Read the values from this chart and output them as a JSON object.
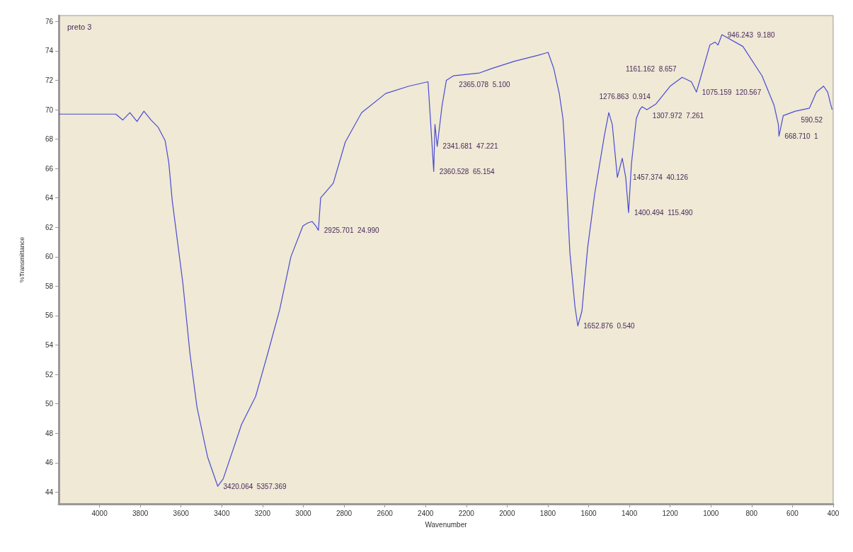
{
  "chart_data": {
    "type": "line",
    "xlabel": "Wavenumber",
    "ylabel": "%Transmittance",
    "x": [
      4200,
      3920,
      3886,
      3851,
      3816,
      3782,
      3747,
      3712,
      3678,
      3660,
      3643,
      3591,
      3556,
      3522,
      3470,
      3420,
      3393,
      3303,
      3234,
      3175,
      3116,
      3061,
      3002,
      2978,
      2957,
      2939,
      2926,
      2915,
      2853,
      2794,
      2714,
      2596,
      2482,
      2388,
      2360,
      2354,
      2343,
      2319,
      2298,
      2264,
      2135,
      2076,
      1962,
      1848,
      1799,
      1771,
      1744,
      1726,
      1719,
      1692,
      1667,
      1653,
      1633,
      1605,
      1570,
      1546,
      1522,
      1501,
      1484,
      1459,
      1435,
      1418,
      1404,
      1390,
      1366,
      1349,
      1338,
      1314,
      1269,
      1200,
      1141,
      1096,
      1071,
      1050,
      1005,
      980,
      965,
      946,
      843,
      749,
      690,
      669,
      666,
      645,
      586,
      517,
      482,
      447,
      427,
      413,
      405
    ],
    "series": [
      {
        "color": "#4b4bd0",
        "values": [
          69.7,
          69.7,
          69.3,
          69.8,
          69.2,
          69.9,
          69.3,
          68.8,
          67.9,
          66.4,
          63.8,
          58.2,
          53.4,
          49.8,
          46.4,
          44.4,
          44.9,
          48.6,
          50.5,
          53.4,
          56.4,
          60.0,
          62.1,
          62.3,
          62.4,
          62.1,
          61.8,
          64.0,
          65.0,
          67.8,
          69.8,
          71.1,
          71.6,
          71.9,
          65.8,
          69.0,
          67.5,
          70.3,
          72.0,
          72.3,
          72.5,
          72.8,
          73.3,
          73.7,
          73.9,
          72.8,
          71.1,
          69.4,
          67.9,
          60.3,
          56.6,
          55.3,
          56.3,
          60.6,
          64.3,
          66.3,
          68.3,
          69.8,
          69.0,
          65.4,
          66.7,
          65.4,
          63.0,
          66.3,
          69.4,
          70.0,
          70.2,
          70.0,
          70.4,
          71.6,
          72.2,
          71.9,
          71.2,
          72.2,
          74.4,
          74.6,
          74.4,
          75.1,
          74.3,
          72.3,
          70.3,
          69.0,
          68.2,
          69.6,
          69.9,
          70.1,
          71.2,
          71.6,
          71.2,
          70.4,
          70.0
        ]
      }
    ],
    "xlim": [
      4200,
      400
    ],
    "xticks": [
      4000,
      3800,
      3600,
      3400,
      3200,
      3000,
      2800,
      2600,
      2400,
      2200,
      2000,
      1800,
      1600,
      1400,
      1200,
      1000,
      800,
      600,
      400
    ],
    "ylim": [
      43.2,
      76.4
    ],
    "yticks": [
      44,
      46,
      48,
      50,
      52,
      54,
      56,
      58,
      60,
      62,
      64,
      66,
      68,
      70,
      72,
      74,
      76
    ],
    "grid": false,
    "marker": "none",
    "line_style": "solid",
    "annotations": [
      "preto 3",
      {
        "text": "3420.064  5357.369",
        "x": 3420,
        "y": 44.4
      },
      {
        "text": "2925.701  24.990",
        "x": 2926,
        "y": 61.8
      },
      {
        "text": "2365.078  5.100",
        "x": 2264,
        "y": 72.3
      },
      {
        "text": "2341.681  47.221",
        "x": 2343,
        "y": 67.5
      },
      {
        "text": "2360.528  65.154",
        "x": 2360,
        "y": 65.8
      },
      {
        "text": "1652.876  0.540",
        "x": 1653,
        "y": 55.3
      },
      {
        "text": "1457.374  40.126",
        "x": 1459,
        "y": 65.4
      },
      {
        "text": "1400.494  115.490",
        "x": 1404,
        "y": 63.0
      },
      {
        "text": "1307.972  7.261",
        "x": 1314,
        "y": 70.0
      },
      {
        "text": "1276.863  0.914",
        "x": 1269,
        "y": 70.4
      },
      {
        "text": "1161.162  8.657",
        "x": 1141,
        "y": 72.2
      },
      {
        "text": "1075.159  120.567",
        "x": 1071,
        "y": 71.2
      },
      {
        "text": "946.243  9.180",
        "x": 946,
        "y": 75.1
      },
      {
        "text": "668.710  1",
        "x": 666,
        "y": 68.2
      },
      {
        "text": "590.52",
        "x": 586,
        "y": 69.9
      }
    ]
  }
}
